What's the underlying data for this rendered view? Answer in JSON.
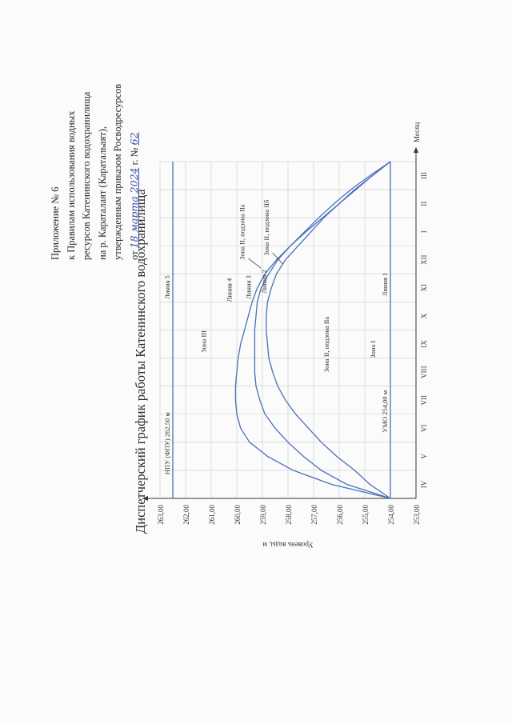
{
  "header": {
    "line1": "Приложение № 6",
    "line2": "к Правилам использования водных",
    "line3": "ресурсов Катенинского водохранилища",
    "line4": "на р. Караталаят (Каратальаят),",
    "line5": "утвержденным приказом Росводресурсов",
    "date_prefix": "от",
    "date_handwritten": "18 марта 2024",
    "date_suffix": "г. №",
    "number_handwritten": "62"
  },
  "chart_data": {
    "type": "line",
    "title": "Диспетчерский график работы Катенинского водохранилища",
    "ylabel": "Уровень воды, м",
    "xlabel": "Месяц",
    "categories": [
      "IV",
      "V",
      "VI",
      "VII",
      "VIII",
      "IX",
      "X",
      "XI",
      "XII",
      "I",
      "II",
      "III"
    ],
    "yticks": [
      "253,00",
      "254,00",
      "255,00",
      "256,00",
      "257,00",
      "258,00",
      "259,00",
      "260,00",
      "261,00",
      "262,00",
      "263,00"
    ],
    "ylim": [
      253,
      263
    ],
    "x_unit_note": "x values are months elapsed from start of April (0 = 1 April, 12 = 31 March)",
    "series": [
      {
        "name": "Линия 1",
        "x": [
          0,
          12
        ],
        "y": [
          254.0,
          254.0
        ]
      },
      {
        "name": "Линия 5",
        "x": [
          0,
          12
        ],
        "y": [
          262.5,
          262.5
        ]
      },
      {
        "name": "Линия 2",
        "x": [
          0,
          0.5,
          1,
          1.5,
          2,
          2.5,
          3,
          3.5,
          4,
          4.5,
          5,
          5.5,
          6,
          6.5,
          7,
          7.5,
          8,
          8.5,
          9,
          9.5,
          10,
          10.5,
          11,
          11.5,
          12
        ],
        "y": [
          254.0,
          254.8,
          255.4,
          256.1,
          256.7,
          257.2,
          257.7,
          258.1,
          258.4,
          258.6,
          258.75,
          258.8,
          258.85,
          258.85,
          258.8,
          258.65,
          258.45,
          258.1,
          257.6,
          257.1,
          256.6,
          256.0,
          255.4,
          254.7,
          254.0
        ]
      },
      {
        "name": "Линия 3",
        "x": [
          0,
          0.5,
          1,
          1.5,
          2,
          2.5,
          3,
          3.5,
          4,
          4.5,
          5,
          5.5,
          6,
          6.5,
          7,
          7.5,
          8,
          8.5,
          9,
          9.5,
          10,
          10.5,
          11,
          11.5,
          12
        ],
        "y": [
          254.0,
          255.7,
          256.7,
          257.4,
          258.0,
          258.5,
          258.9,
          259.1,
          259.25,
          259.3,
          259.3,
          259.3,
          259.3,
          259.25,
          259.2,
          259.05,
          258.75,
          258.4,
          257.9,
          257.35,
          256.8,
          256.2,
          255.55,
          254.8,
          254.0
        ]
      },
      {
        "name": "Линия 4",
        "x": [
          0,
          0.5,
          1,
          1.5,
          2,
          2.5,
          3,
          3.5,
          4,
          4.5,
          5,
          5.5,
          6,
          6.5,
          7,
          7.5,
          8,
          8.5,
          9,
          9.5,
          10,
          10.5,
          11,
          11.5,
          12
        ],
        "y": [
          254.0,
          256.3,
          257.8,
          258.8,
          259.5,
          259.85,
          260.0,
          260.05,
          260.05,
          260.0,
          259.95,
          259.85,
          259.7,
          259.55,
          259.4,
          259.2,
          258.9,
          258.45,
          257.9,
          257.3,
          256.65,
          256.0,
          255.35,
          254.7,
          254.0
        ]
      }
    ],
    "annotations": {
      "npu": "НПУ (ФПУ) 262,50 м",
      "umo": "УМО 254,00 м",
      "zone3": "Зона III",
      "zone2a": "Зона II, подзона IIа",
      "zone2a_top": "Зона II, подзона IIа",
      "zone2b": "Зона II, подзона IIб",
      "zone1": "Зона I",
      "line1": "Линия 1",
      "line2": "Линия 2",
      "line3": "Линия 3",
      "line4": "Линия 4",
      "line5": "Линия 5"
    },
    "colors": {
      "lines": "#4a70b8",
      "axes": "#333333",
      "grid": "#c8c8c8"
    },
    "grid": true
  }
}
